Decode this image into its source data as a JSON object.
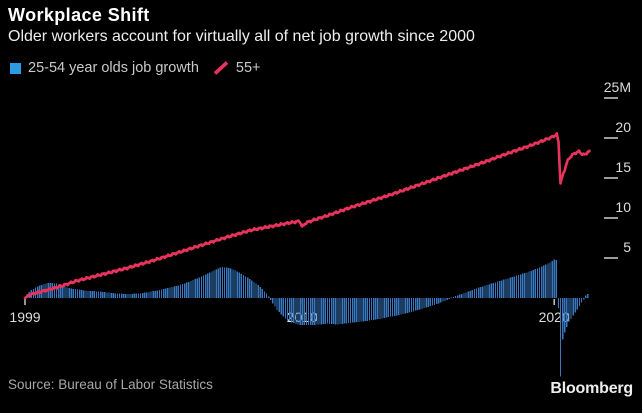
{
  "header": {
    "title": "Workplace Shift",
    "subtitle": "Older workers account for virtually all of net job growth since 2000"
  },
  "legend": {
    "items": [
      {
        "label": "25-54 year olds job growth",
        "marker": "square",
        "color": "#2D9CE4"
      },
      {
        "label": "55+",
        "marker": "slash",
        "color": "#E8345C"
      }
    ]
  },
  "footer": {
    "source": "Source: Bureau of Labor Statistics",
    "brand": "Bloomberg"
  },
  "colors": {
    "background": "#000000",
    "bar": "#3878C0",
    "line": "#E8345C",
    "axis_text": "#DCDCDC",
    "y_tick_dash": "#9B9B9B",
    "x_tick": "#C9C9C9",
    "title_text": "#FFFFFF",
    "subtitle_text": "#EDEDED",
    "legend_text": "#C9C9C9",
    "source_text": "#A8A8A8",
    "brand_text": "#EDEDED"
  },
  "chart_data": {
    "type": "combo-bar-line",
    "title": "Workplace Shift",
    "subtitle": "Older workers account for virtually all of net job growth since 2000",
    "grid": "off",
    "legend_position": "top-left",
    "x_axis": {
      "range": [
        1999,
        2021.4
      ],
      "ticks": [
        {
          "value": 1999,
          "label": "1999"
        },
        {
          "value": 2010,
          "label": "2010"
        },
        {
          "value": 2020,
          "label": "2020"
        }
      ]
    },
    "y_axis": {
      "side": "right",
      "units": "millions",
      "range_shown": [
        -10,
        25
      ],
      "ticks": [
        {
          "value": 25,
          "label": "25M"
        },
        {
          "value": 20,
          "label": "20"
        },
        {
          "value": 15,
          "label": "15"
        },
        {
          "value": 10,
          "label": "10"
        },
        {
          "value": 5,
          "label": "5"
        }
      ]
    },
    "series": [
      {
        "name": "25-54 year olds job growth",
        "type": "bar",
        "color": "#3878C0",
        "points": [
          [
            1999.08,
            0.5
          ],
          [
            1999.25,
            1.0
          ],
          [
            1999.5,
            1.45
          ],
          [
            1999.75,
            1.75
          ],
          [
            2000.0,
            1.9
          ],
          [
            2000.25,
            1.8
          ],
          [
            2000.5,
            1.5
          ],
          [
            2000.75,
            1.25
          ],
          [
            2001.0,
            1.1
          ],
          [
            2001.5,
            0.9
          ],
          [
            2002.0,
            0.8
          ],
          [
            2002.5,
            0.6
          ],
          [
            2003.0,
            0.5
          ],
          [
            2003.5,
            0.55
          ],
          [
            2004.0,
            0.8
          ],
          [
            2004.5,
            1.1
          ],
          [
            2005.0,
            1.5
          ],
          [
            2005.5,
            2.0
          ],
          [
            2006.0,
            2.7
          ],
          [
            2006.4,
            3.3
          ],
          [
            2006.8,
            3.9
          ],
          [
            2007.0,
            3.8
          ],
          [
            2007.3,
            3.55
          ],
          [
            2007.6,
            3.0
          ],
          [
            2008.0,
            2.2
          ],
          [
            2008.3,
            1.5
          ],
          [
            2008.6,
            0.5
          ],
          [
            2008.8,
            -0.5
          ],
          [
            2009.0,
            -1.5
          ],
          [
            2009.3,
            -2.5
          ],
          [
            2009.6,
            -3.1
          ],
          [
            2009.9,
            -3.35
          ],
          [
            2010.3,
            -3.4
          ],
          [
            2010.7,
            -3.3
          ],
          [
            2011.0,
            -3.2
          ],
          [
            2011.4,
            -3.3
          ],
          [
            2011.8,
            -3.15
          ],
          [
            2012.2,
            -3.0
          ],
          [
            2012.6,
            -2.85
          ],
          [
            2013.0,
            -2.65
          ],
          [
            2013.4,
            -2.4
          ],
          [
            2013.8,
            -2.15
          ],
          [
            2014.2,
            -1.85
          ],
          [
            2014.6,
            -1.5
          ],
          [
            2015.0,
            -1.1
          ],
          [
            2015.4,
            -0.7
          ],
          [
            2015.7,
            -0.3
          ],
          [
            2016.0,
            0.15
          ],
          [
            2016.5,
            0.7
          ],
          [
            2017.0,
            1.3
          ],
          [
            2017.5,
            1.8
          ],
          [
            2018.0,
            2.3
          ],
          [
            2018.5,
            2.8
          ],
          [
            2019.0,
            3.3
          ],
          [
            2019.4,
            3.8
          ],
          [
            2019.75,
            4.3
          ],
          [
            2020.0,
            4.8
          ],
          [
            2020.08,
            5.0
          ],
          [
            2020.17,
            -1.5
          ],
          [
            2020.25,
            -9.8
          ],
          [
            2020.33,
            -5.2
          ],
          [
            2020.42,
            -4.3
          ],
          [
            2020.5,
            -3.6
          ],
          [
            2020.58,
            -3.0
          ],
          [
            2020.67,
            -2.6
          ],
          [
            2020.75,
            -2.2
          ],
          [
            2020.83,
            -1.8
          ],
          [
            2020.92,
            -1.4
          ],
          [
            2021.0,
            -1.0
          ],
          [
            2021.08,
            -0.6
          ],
          [
            2021.17,
            -0.2
          ],
          [
            2021.25,
            0.3
          ],
          [
            2021.33,
            0.5
          ]
        ]
      },
      {
        "name": "55+",
        "type": "line",
        "color": "#E8345C",
        "points": [
          [
            1999.0,
            0
          ],
          [
            1999.15,
            0.35
          ],
          [
            1999.4,
            0.6
          ],
          [
            1999.7,
            0.85
          ],
          [
            2000.0,
            1.1
          ],
          [
            2000.5,
            1.55
          ],
          [
            2001.0,
            2.1
          ],
          [
            2001.5,
            2.5
          ],
          [
            2002.0,
            2.9
          ],
          [
            2002.5,
            3.3
          ],
          [
            2003.0,
            3.7
          ],
          [
            2003.5,
            4.15
          ],
          [
            2004.0,
            4.6
          ],
          [
            2004.5,
            5.1
          ],
          [
            2005.0,
            5.6
          ],
          [
            2005.5,
            6.1
          ],
          [
            2006.0,
            6.6
          ],
          [
            2006.5,
            7.1
          ],
          [
            2007.0,
            7.6
          ],
          [
            2007.5,
            8.05
          ],
          [
            2008.0,
            8.5
          ],
          [
            2008.5,
            8.8
          ],
          [
            2009.0,
            9.1
          ],
          [
            2009.5,
            9.4
          ],
          [
            2009.9,
            9.6
          ],
          [
            2010.0,
            8.9
          ],
          [
            2010.15,
            9.4
          ],
          [
            2010.5,
            9.8
          ],
          [
            2011.0,
            10.3
          ],
          [
            2011.5,
            10.85
          ],
          [
            2012.0,
            11.4
          ],
          [
            2012.5,
            11.9
          ],
          [
            2013.0,
            12.4
          ],
          [
            2013.5,
            12.9
          ],
          [
            2014.0,
            13.45
          ],
          [
            2014.5,
            14.0
          ],
          [
            2015.0,
            14.55
          ],
          [
            2015.5,
            15.1
          ],
          [
            2016.0,
            15.65
          ],
          [
            2016.5,
            16.2
          ],
          [
            2017.0,
            16.75
          ],
          [
            2017.5,
            17.3
          ],
          [
            2018.0,
            17.9
          ],
          [
            2018.5,
            18.45
          ],
          [
            2019.0,
            19.0
          ],
          [
            2019.5,
            19.6
          ],
          [
            2019.9,
            20.1
          ],
          [
            2020.1,
            20.45
          ],
          [
            2020.17,
            19.6
          ],
          [
            2020.25,
            14.4
          ],
          [
            2020.33,
            15.2
          ],
          [
            2020.42,
            16.1
          ],
          [
            2020.5,
            16.9
          ],
          [
            2020.58,
            17.4
          ],
          [
            2020.67,
            17.75
          ],
          [
            2020.75,
            17.95
          ],
          [
            2020.83,
            18.1
          ],
          [
            2020.92,
            18.25
          ],
          [
            2021.0,
            18.3
          ],
          [
            2021.08,
            18.05
          ],
          [
            2021.17,
            17.9
          ],
          [
            2021.25,
            18.0
          ],
          [
            2021.33,
            18.25
          ],
          [
            2021.4,
            18.3
          ]
        ]
      }
    ]
  }
}
